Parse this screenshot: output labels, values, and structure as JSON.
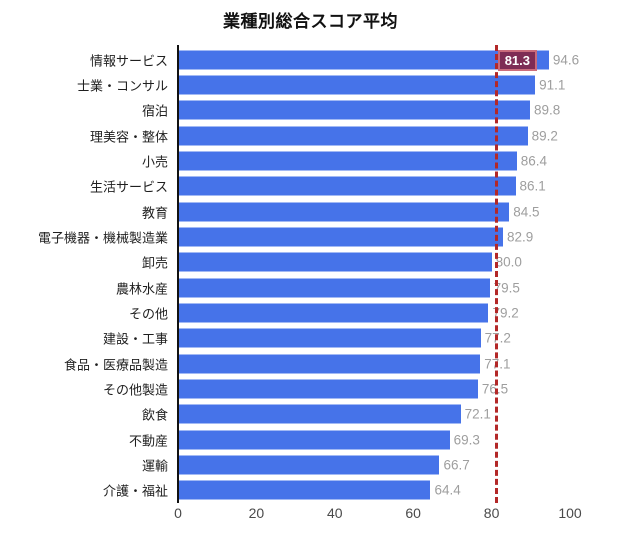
{
  "title": "業種別総合スコア平均",
  "chart_data": {
    "type": "bar",
    "orientation": "horizontal",
    "title": "業種別総合スコア平均",
    "categories": [
      "情報サービス",
      "士業・コンサル",
      "宿泊",
      "理美容・整体",
      "小売",
      "生活サービス",
      "教育",
      "電子機器・機械製造業",
      "卸売",
      "農林水産",
      "その他",
      "建設・工事",
      "食品・医療品製造",
      "その他製造",
      "飲食",
      "不動産",
      "運輸",
      "介護・福祉"
    ],
    "values": [
      94.6,
      91.1,
      89.8,
      89.2,
      86.4,
      86.1,
      84.5,
      82.9,
      80.0,
      79.5,
      79.2,
      77.2,
      77.1,
      76.5,
      72.1,
      69.3,
      66.7,
      64.4
    ],
    "value_labels": [
      "94.6",
      "91.1",
      "89.8",
      "89.2",
      "86.4",
      "86.1",
      "84.5",
      "82.9",
      "80.0",
      "79.5",
      "79.2",
      "77.2",
      "77.1",
      "76.5",
      "72.1",
      "69.3",
      "66.7",
      "64.4"
    ],
    "xlabel": "",
    "ylabel": "",
    "xlim": [
      0,
      100
    ],
    "x_ticks": [
      0,
      20,
      40,
      60,
      80,
      100
    ],
    "x_tick_labels": [
      "0",
      "20",
      "40",
      "60",
      "80",
      "100"
    ],
    "grid": false,
    "legend": false,
    "bar_color": "#4673e9",
    "value_label_color": "#9e9e9e",
    "category_label_color": "#1f1f1f",
    "tick_label_color": "#4a4a4a",
    "reference_line": {
      "value": 81.3,
      "label": "81.3",
      "color": "#b32828"
    }
  }
}
